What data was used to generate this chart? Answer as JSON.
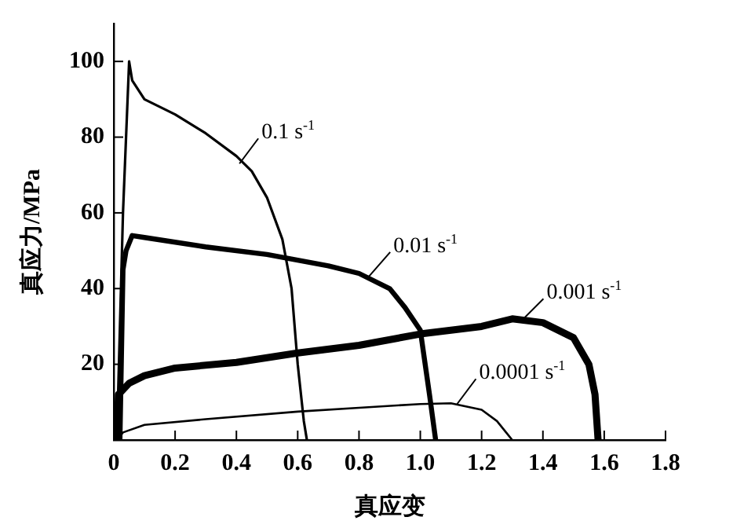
{
  "chart_data": {
    "type": "line",
    "xlabel": "真应变",
    "ylabel": "真应力/MPa",
    "xlim": [
      0,
      1.8
    ],
    "xticks": [
      0,
      0.2,
      0.4,
      0.6,
      0.8,
      {
        "value": 1,
        "label": "1.0"
      },
      1.2,
      1.4,
      1.6,
      1.8
    ],
    "ylim": [
      0,
      110
    ],
    "yticks": [
      {
        "value": 0,
        "label": null
      },
      20,
      40,
      60,
      80,
      100
    ],
    "grid": false,
    "legend": false,
    "marker": "none",
    "line_style": "solid",
    "series": [
      {
        "color": "#000000",
        "x": [
          0.01,
          0.03,
          0.05,
          0.06,
          0.1,
          0.2,
          0.3,
          0.4,
          0.45,
          0.5,
          0.55,
          0.58,
          0.6,
          0.62,
          0.63
        ],
        "values": [
          0,
          60,
          100,
          95,
          90,
          86,
          81,
          75,
          71,
          64,
          53,
          40,
          20,
          5,
          0
        ]
      },
      {
        "color": "#000000",
        "x": [
          0.02,
          0.03,
          0.04,
          0.06,
          0.1,
          0.3,
          0.5,
          0.7,
          0.8,
          0.9,
          0.95,
          1.0,
          1.03,
          1.05
        ],
        "values": [
          0,
          45,
          50,
          54,
          53.5,
          51,
          49,
          46,
          44,
          40,
          35,
          29,
          12,
          0
        ]
      },
      {
        "color": "#000000",
        "x": [
          0.01,
          0.015,
          0.05,
          0.1,
          0.2,
          0.4,
          0.6,
          0.8,
          1.0,
          1.2,
          1.3,
          1.4,
          1.5,
          1.55,
          1.57,
          1.58
        ],
        "values": [
          0,
          12,
          15,
          17,
          19,
          20.5,
          23,
          25,
          28,
          30,
          32,
          31,
          27,
          20,
          12,
          0
        ]
      },
      {
        "color": "#000000",
        "x": [
          0.01,
          0.03,
          0.1,
          0.3,
          0.6,
          0.8,
          1.0,
          1.1,
          1.2,
          1.25,
          1.28,
          1.3
        ],
        "values": [
          0,
          2,
          4,
          5.5,
          7.5,
          8.5,
          9.5,
          9.7,
          8,
          5,
          2,
          0
        ]
      }
    ],
    "annotations": [
      {
        "text": "0.1 s$^{-1}$",
        "x": 0.41,
        "y": 73
      },
      {
        "text": "0.01 s$^{-1}$",
        "x": 0.83,
        "y": 43
      },
      {
        "text": "0.001 s$^{-1}$",
        "x": 1.33,
        "y": 31.5
      },
      {
        "text": "0.0001 s$^{-1}$",
        "x": 1.12,
        "y": 9.5
      }
    ]
  }
}
